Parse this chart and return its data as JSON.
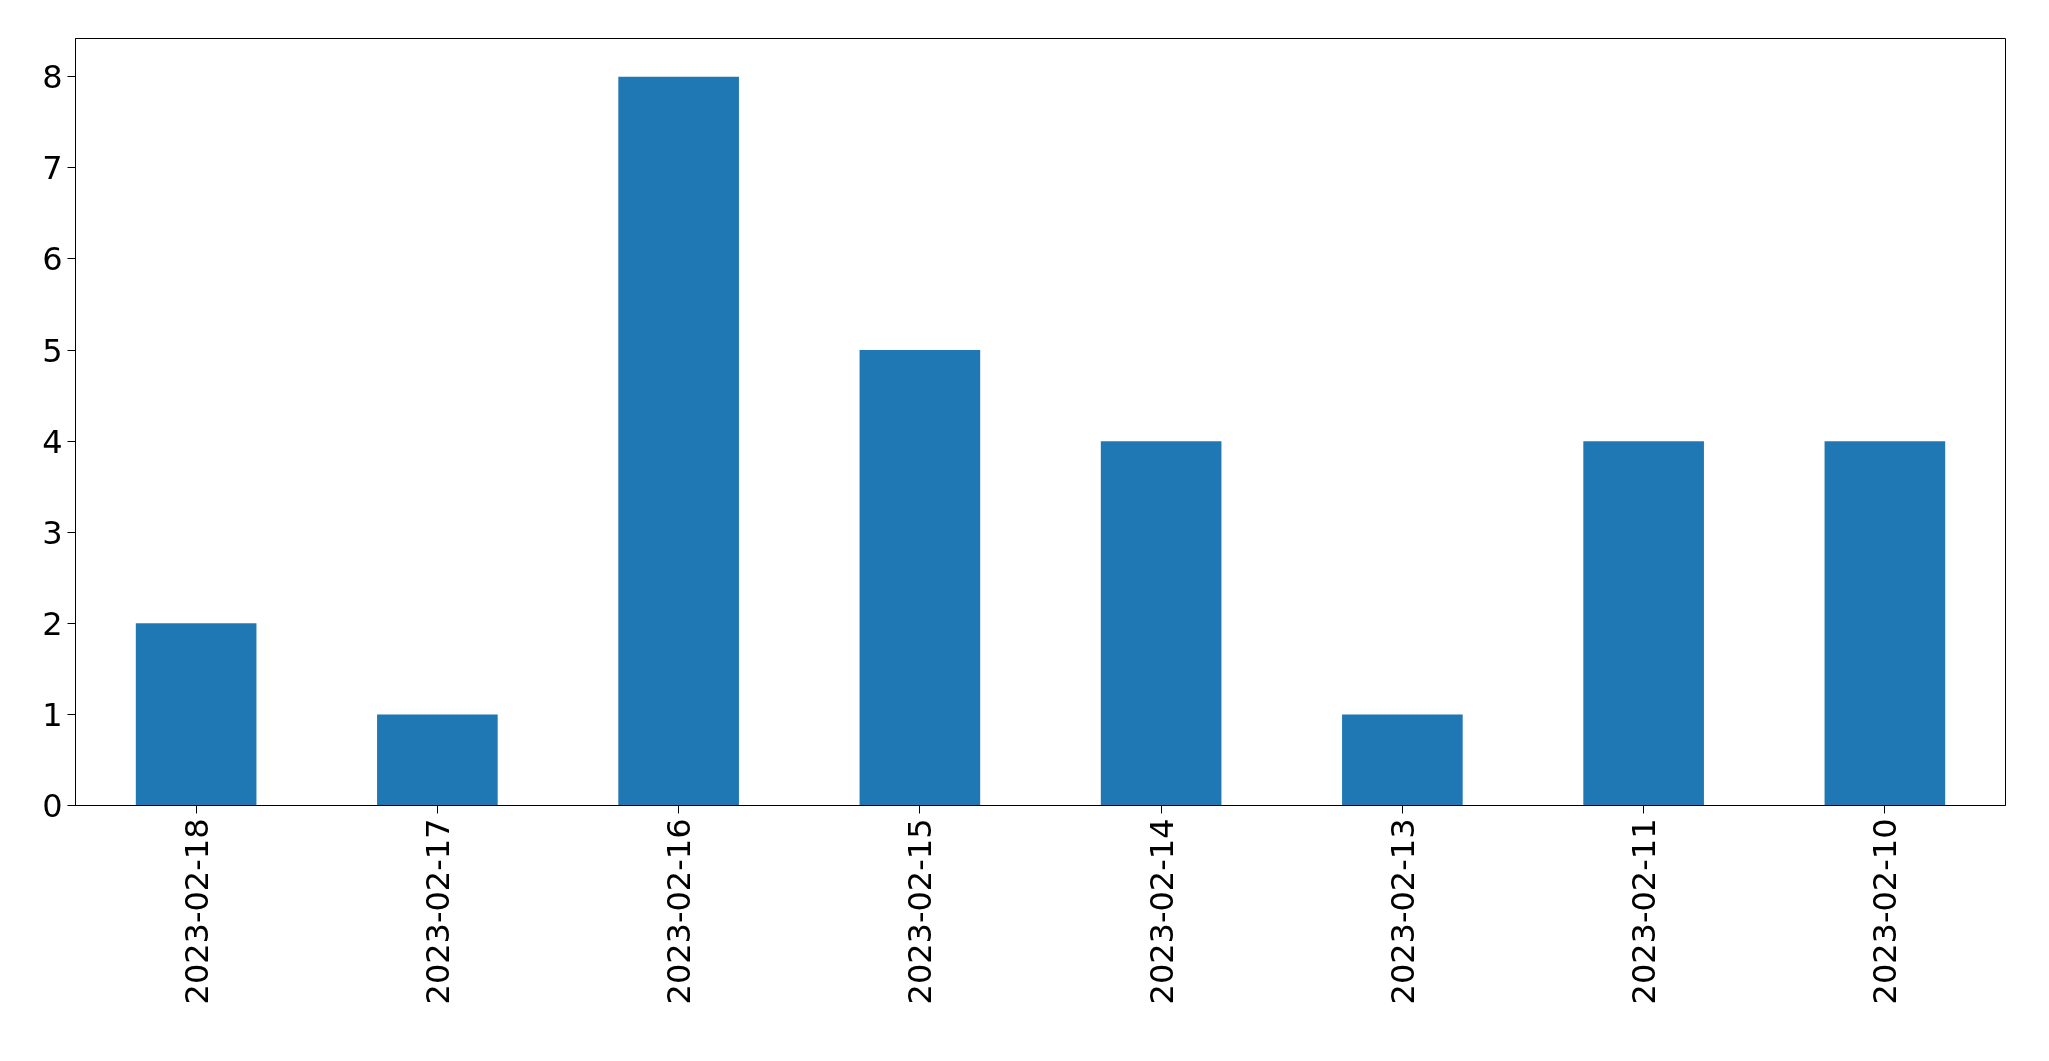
{
  "chart_data": {
    "type": "bar",
    "categories": [
      "2023-02-18",
      "2023-02-17",
      "2023-02-16",
      "2023-02-15",
      "2023-02-14",
      "2023-02-13",
      "2023-02-11",
      "2023-02-10"
    ],
    "values": [
      2,
      1,
      8,
      5,
      4,
      1,
      4,
      4
    ],
    "color": "#1f77b4",
    "ylim": [
      0,
      8.42
    ],
    "yticks": [
      0,
      1,
      2,
      3,
      4,
      5,
      6,
      7,
      8
    ],
    "grid": false
  }
}
